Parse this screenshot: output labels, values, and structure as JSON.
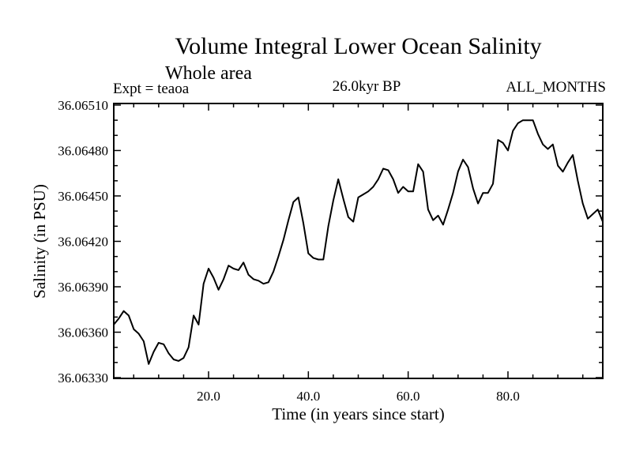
{
  "header": {
    "title": "Volume Integral Lower Ocean Salinity",
    "subtitle": "Whole area",
    "experiment": "Expt = teaoa",
    "epoch": "26.0kyr BP",
    "months": "ALL_MONTHS"
  },
  "chart_data": {
    "type": "line",
    "title": "Volume Integral Lower Ocean Salinity",
    "subtitle": "Whole area",
    "annotations": [
      "Expt = teaoa",
      "26.0kyr BP",
      "ALL_MONTHS"
    ],
    "xlabel": "Time (in years since start)",
    "ylabel": "Salinity (in PSU)",
    "xlim": [
      1,
      99
    ],
    "ylim": [
      36.0633,
      36.0651
    ],
    "x_major_ticks": [
      20,
      40,
      60,
      80
    ],
    "x_minor_step": 5,
    "y_major_ticks": [
      36.0633,
      36.0636,
      36.0639,
      36.0642,
      36.0645,
      36.0648,
      36.0651
    ],
    "y_minor_step": 0.0001,
    "x_tick_decimals": 1,
    "y_tick_decimals": 5,
    "grid": "off",
    "legend": "none",
    "line_color": "#000000",
    "background_color": "#ffffff",
    "series": [
      {
        "name": "volume-integral-lower-ocean-salinity",
        "x_start": 1,
        "x_step": 1,
        "values": [
          36.06365,
          36.06369,
          36.06374,
          36.06371,
          36.06362,
          36.06359,
          36.06354,
          36.06339,
          36.06347,
          36.06353,
          36.06352,
          36.06346,
          36.06342,
          36.06341,
          36.06343,
          36.0635,
          36.06371,
          36.06365,
          36.06392,
          36.06402,
          36.06396,
          36.06388,
          36.06395,
          36.06404,
          36.06402,
          36.06401,
          36.06406,
          36.06398,
          36.06395,
          36.06394,
          36.06392,
          36.06393,
          36.064,
          36.0641,
          36.06421,
          36.06434,
          36.06446,
          36.06449,
          36.06432,
          36.06412,
          36.06409,
          36.06408,
          36.06408,
          36.0643,
          36.06447,
          36.06461,
          36.06448,
          36.06436,
          36.06433,
          36.06449,
          36.06451,
          36.06453,
          36.06456,
          36.06461,
          36.06468,
          36.06467,
          36.06461,
          36.06452,
          36.06456,
          36.06453,
          36.06453,
          36.06471,
          36.06466,
          36.06441,
          36.06434,
          36.06437,
          36.06431,
          36.06441,
          36.06452,
          36.06466,
          36.06474,
          36.06469,
          36.06455,
          36.06445,
          36.06452,
          36.06452,
          36.06458,
          36.06487,
          36.06485,
          36.0648,
          36.06493,
          36.06498,
          36.065,
          36.065,
          36.065,
          36.06491,
          36.06484,
          36.06481,
          36.06484,
          36.0647,
          36.06466,
          36.06472,
          36.06477,
          36.0646,
          36.06445,
          36.06435,
          36.06438,
          36.06441,
          36.06433
        ]
      }
    ]
  }
}
